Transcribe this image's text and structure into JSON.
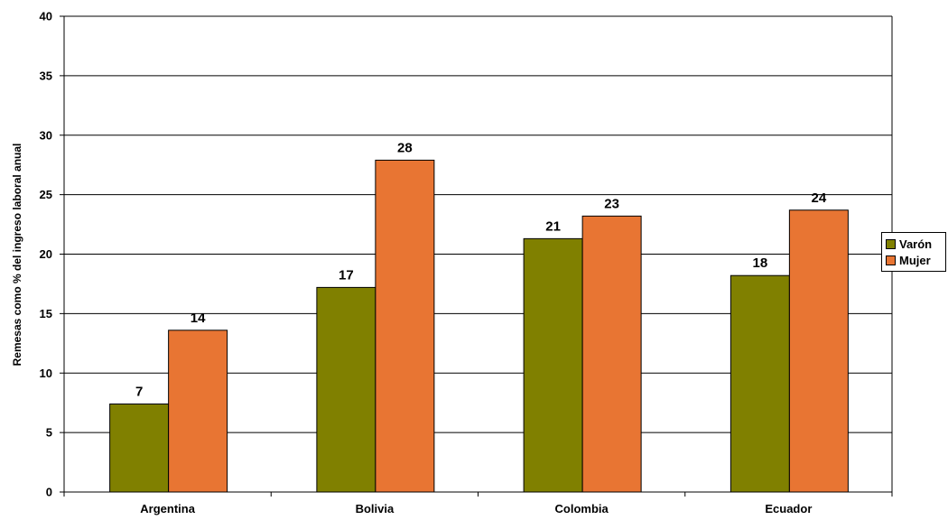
{
  "chart_data": {
    "type": "bar",
    "categories": [
      "Argentina",
      "Bolivia",
      "Colombia",
      "Ecuador"
    ],
    "series": [
      {
        "name": "Varón",
        "values": [
          7.4,
          17.2,
          21.3,
          18.2
        ],
        "labels": [
          "7",
          "17",
          "21",
          "18"
        ],
        "color": "#808000"
      },
      {
        "name": "Mujer",
        "values": [
          13.6,
          27.9,
          23.2,
          23.7
        ],
        "labels": [
          "14",
          "28",
          "23",
          "24"
        ],
        "color": "#E87533"
      }
    ],
    "title": "",
    "xlabel": "",
    "ylabel": "Remesas como % del ingreso laboral anual",
    "ylim": [
      0,
      40
    ],
    "yticks": [
      0,
      5,
      10,
      15,
      20,
      25,
      30,
      35,
      40
    ],
    "grid": true,
    "legend_position": "right"
  }
}
